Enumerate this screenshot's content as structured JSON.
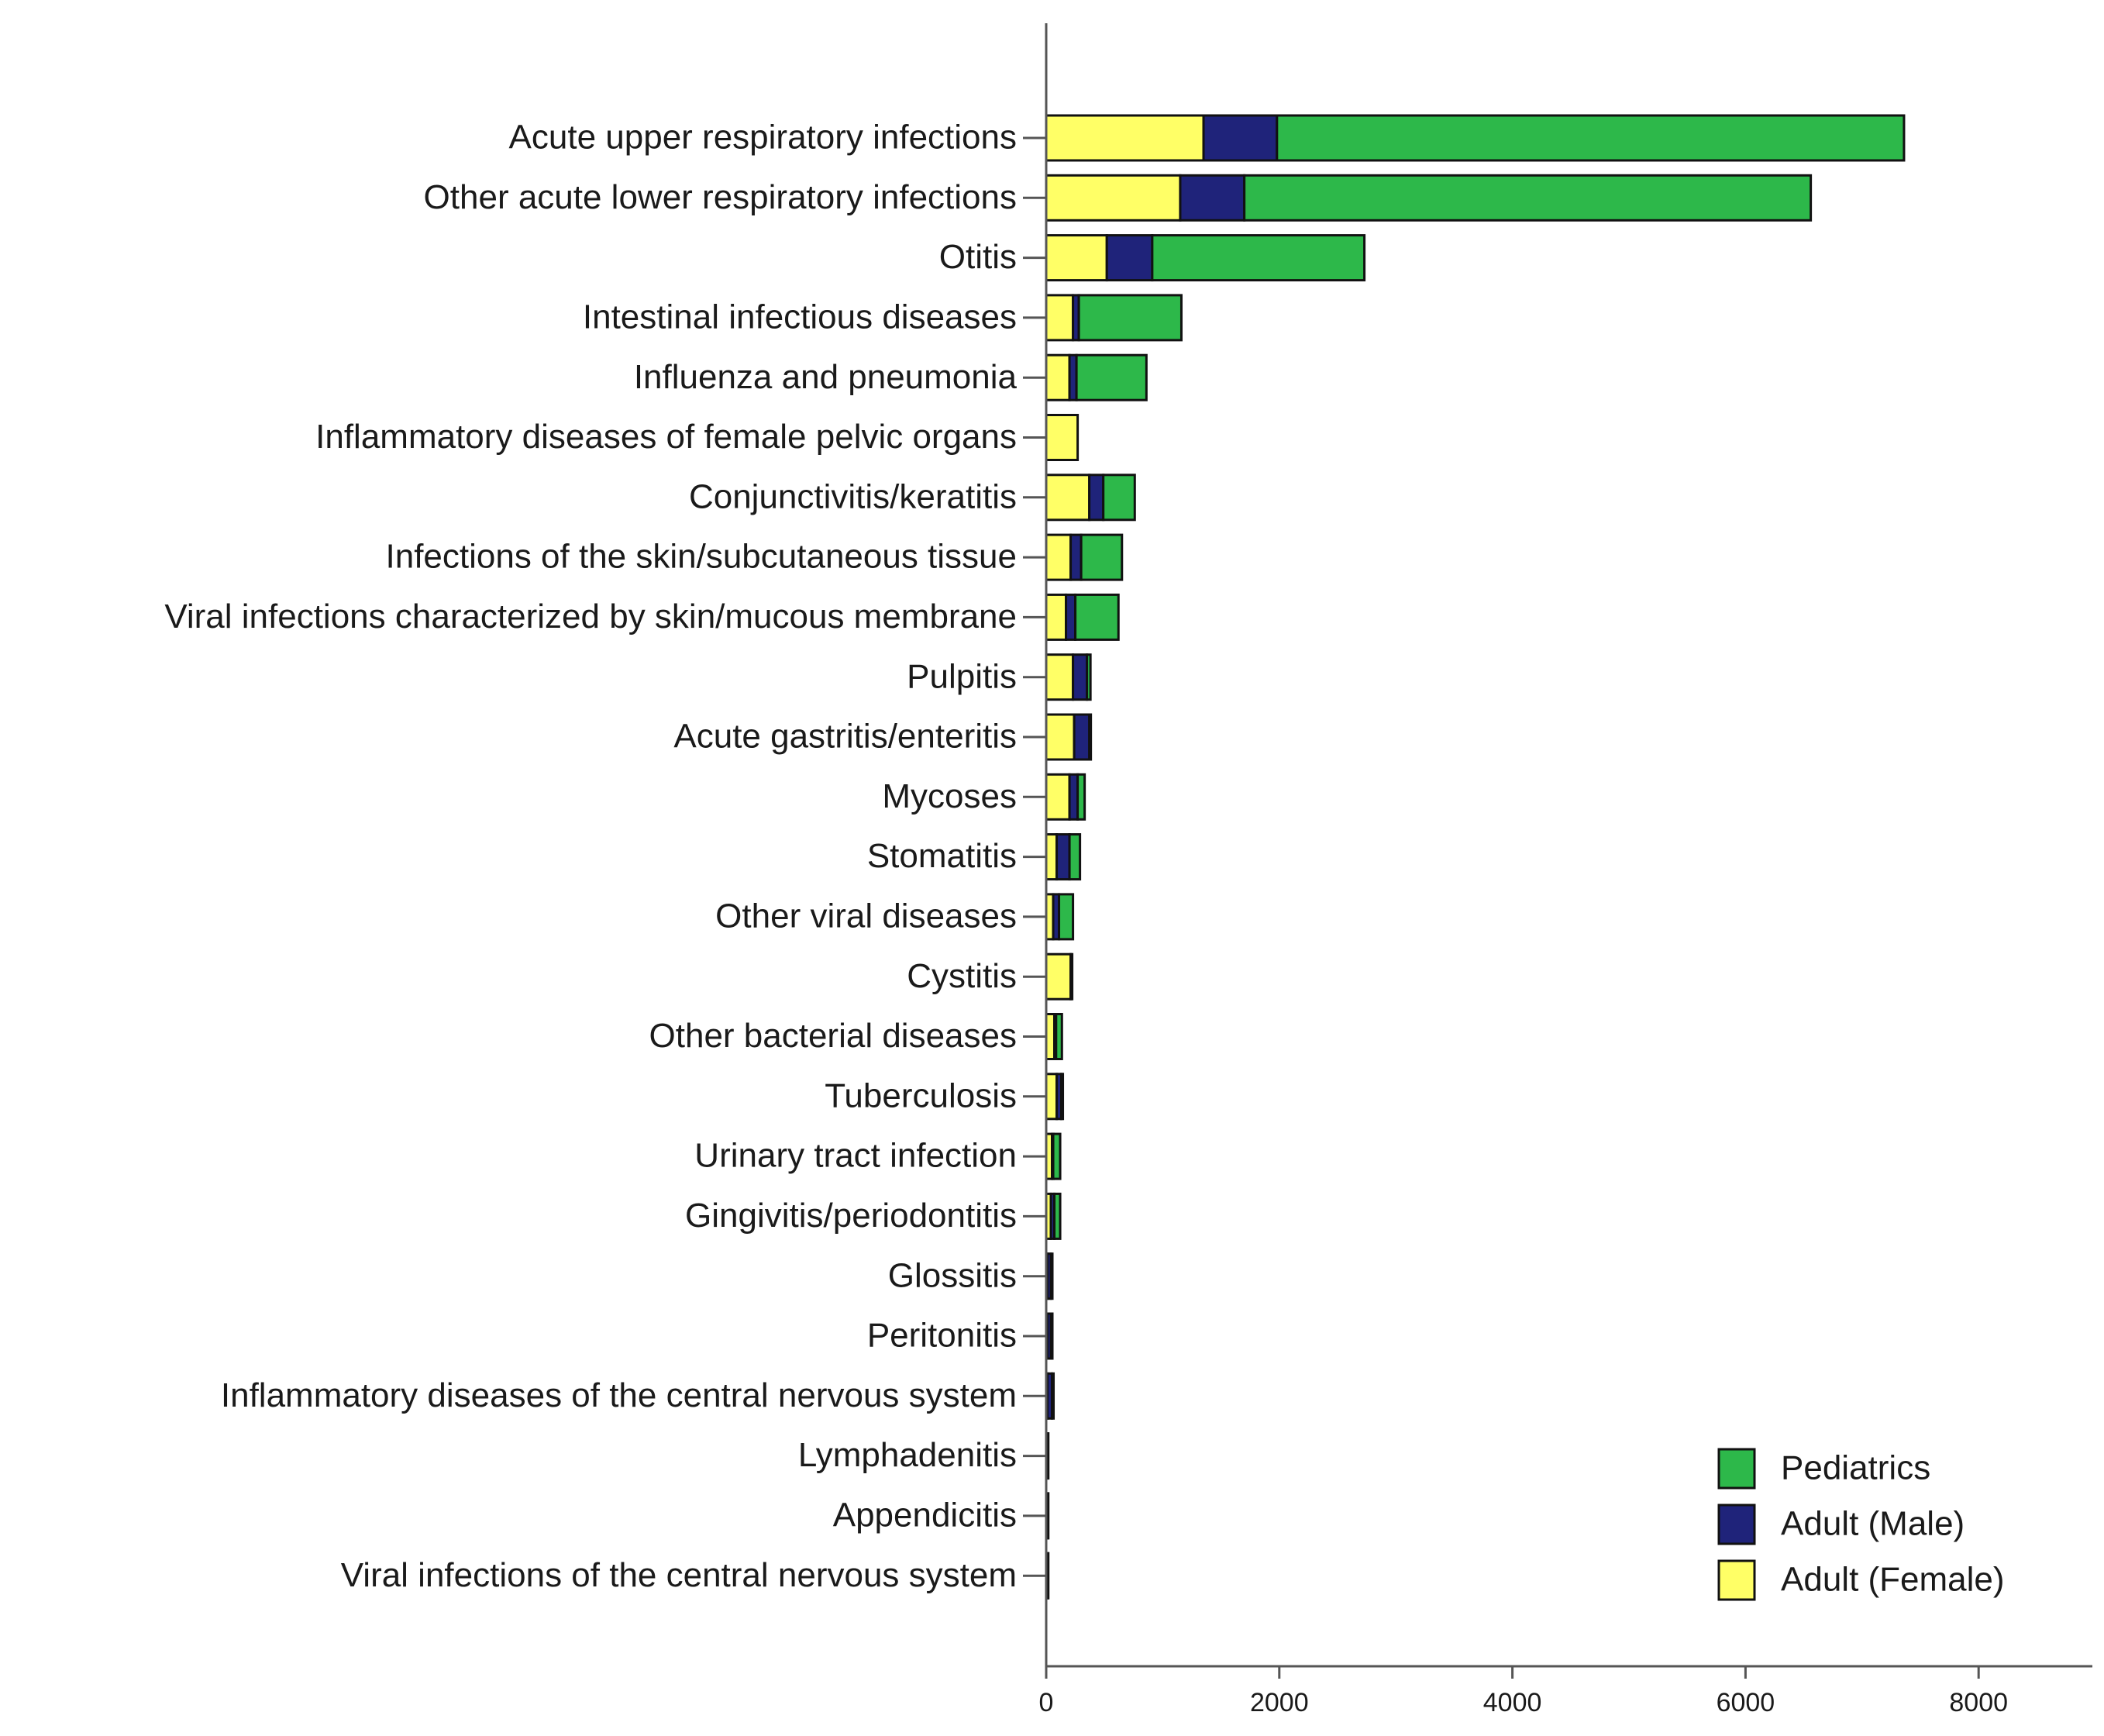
{
  "chart_data": {
    "type": "bar",
    "orientation": "horizontal",
    "stacked": true,
    "title": "",
    "xlabel": "",
    "ylabel": "",
    "xlim": [
      0,
      8900
    ],
    "xticks": [
      0,
      2000,
      4000,
      6000,
      8000
    ],
    "categories": [
      "Acute upper respiratory infections",
      "Other acute lower respiratory infections",
      "Otitis",
      "Intestinal infectious diseases",
      "Influenza and pneumonia",
      "Inflammatory diseases of female pelvic organs",
      "Conjunctivitis/keratitis",
      "Infections of the skin/subcutaneous tissue",
      "Viral infections characterized by skin/mucous membrane",
      "Pulpitis",
      "Acute gastritis/enteritis",
      "Mycoses",
      "Stomatitis",
      "Other viral diseases",
      "Cystitis",
      "Other bacterial diseases",
      "Tuberculosis",
      "Urinary tract infection",
      "Gingivitis/periodontitis",
      "Glossitis",
      "Peritonitis",
      "Inflammatory diseases of the central nervous system",
      "Lymphadenitis",
      "Appendicitis",
      "Viral infections of the central nervous system"
    ],
    "series": [
      {
        "name": "Adult (Female)",
        "color": "#ffff66",
        "values": [
          1350,
          1150,
          520,
          230,
          200,
          270,
          370,
          210,
          170,
          230,
          240,
          200,
          90,
          60,
          210,
          70,
          90,
          50,
          40,
          10,
          10,
          10,
          5,
          5,
          5
        ]
      },
      {
        "name": "Adult (Male)",
        "color": "#1f237a",
        "values": [
          630,
          550,
          390,
          50,
          60,
          0,
          120,
          90,
          80,
          120,
          130,
          70,
          110,
          50,
          5,
          15,
          40,
          10,
          30,
          30,
          30,
          40,
          5,
          5,
          5
        ]
      },
      {
        "name": "Pediatrics",
        "color": "#2db84a",
        "values": [
          5380,
          4860,
          1820,
          880,
          600,
          0,
          270,
          350,
          370,
          30,
          10,
          60,
          90,
          120,
          0,
          50,
          5,
          60,
          50,
          5,
          5,
          5,
          0,
          0,
          0
        ]
      }
    ],
    "legend": {
      "position": "bottom-right",
      "items": [
        "Pediatrics",
        "Adult  (Male)",
        "Adult  (Female)"
      ]
    }
  }
}
